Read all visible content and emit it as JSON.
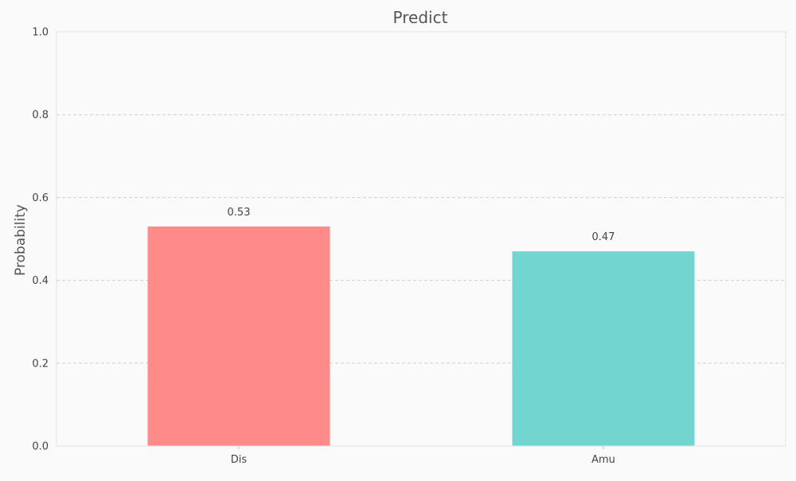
{
  "chart_data": {
    "type": "bar",
    "title": "Predict",
    "xlabel": "",
    "ylabel": "Probability",
    "categories": [
      "Dis",
      "Amu"
    ],
    "values": [
      0.53,
      0.47
    ],
    "value_labels": [
      "0.53",
      "0.47"
    ],
    "bar_colors": [
      "#ff8a8a",
      "#72d5cf"
    ],
    "ylim": [
      0,
      1.0
    ],
    "yticks": [
      0.0,
      0.2,
      0.4,
      0.6,
      0.8,
      1.0
    ],
    "ytick_labels": [
      "0.0",
      "0.2",
      "0.4",
      "0.6",
      "0.8",
      "1.0"
    ],
    "grid": true,
    "legend": "none"
  }
}
